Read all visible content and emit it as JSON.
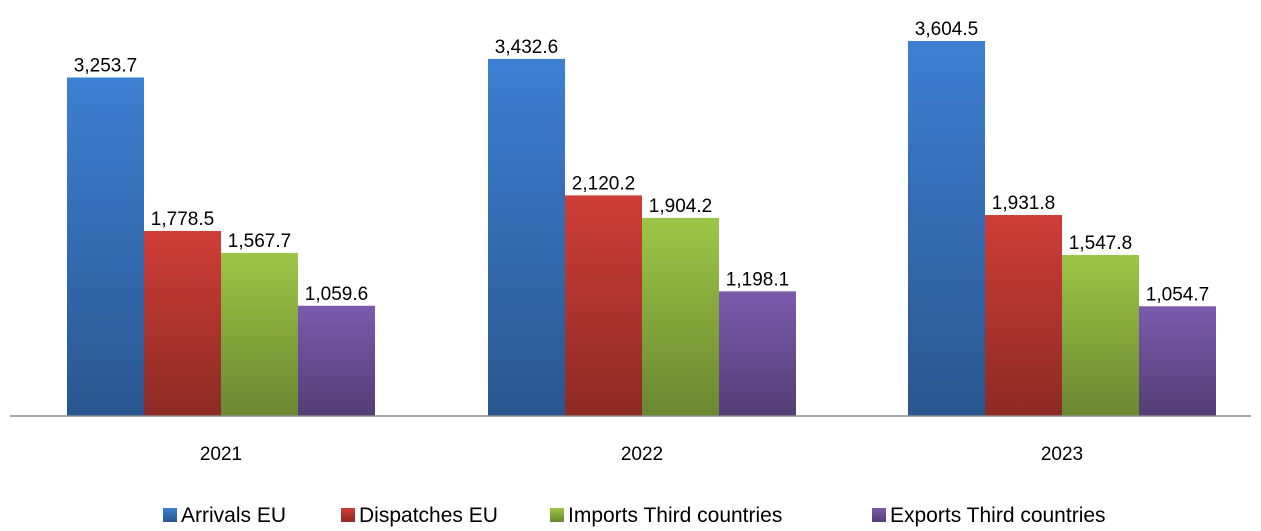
{
  "chart_data": {
    "type": "bar",
    "title": "",
    "xlabel": "",
    "ylabel": "",
    "categories": [
      "2021",
      "2022",
      "2023"
    ],
    "ylim": [
      0,
      3604.5
    ],
    "grid": false,
    "legend_position": "bottom",
    "series": [
      {
        "name": "Arrivals EU",
        "color": "#3A78C6",
        "values": [
          3253.7,
          3432.6,
          3604.5
        ],
        "labels": [
          "3,253.7",
          "3,432.6",
          "3,604.5"
        ]
      },
      {
        "name": "Dispatches EU",
        "color": "#C33A34",
        "values": [
          1778.5,
          2120.2,
          1931.8
        ],
        "labels": [
          "1,778.5",
          "2,120.2",
          "1,931.8"
        ]
      },
      {
        "name": "Imports Third countries",
        "color": "#93BB43",
        "values": [
          1567.7,
          1904.2,
          1547.8
        ],
        "labels": [
          "1,567.7",
          "1,904.2",
          "1,547.8"
        ]
      },
      {
        "name": "Exports Third countries",
        "color": "#7555A3",
        "values": [
          1059.6,
          1198.1,
          1054.7
        ],
        "labels": [
          "1,059.6",
          "1,198.1",
          "1,054.7"
        ]
      }
    ]
  }
}
